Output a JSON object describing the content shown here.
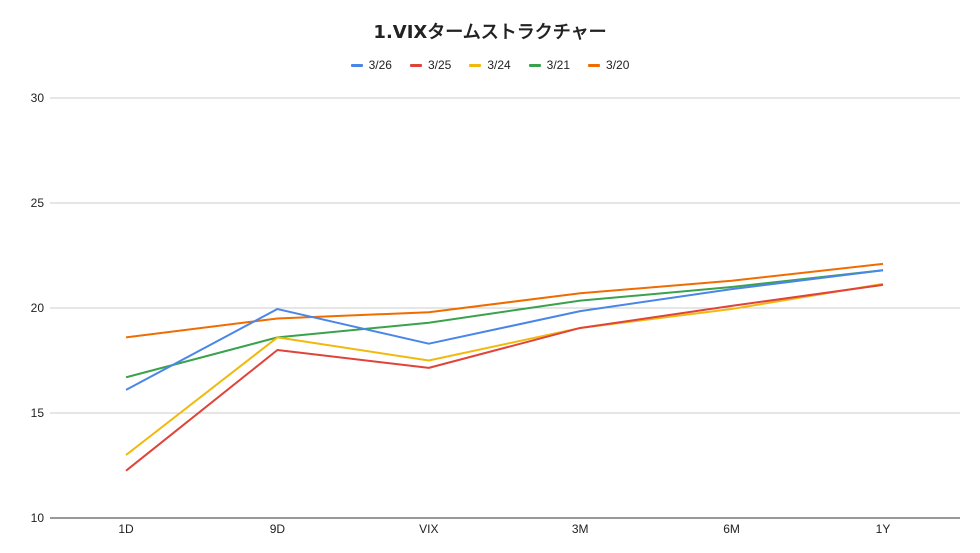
{
  "chart_data": {
    "type": "line",
    "title": "1.VIXタームストラクチャー",
    "xlabel": "",
    "ylabel": "",
    "categories": [
      "1D",
      "9D",
      "VIX",
      "3M",
      "6M",
      "1Y"
    ],
    "ylim": [
      10,
      30
    ],
    "yticks": [
      10,
      15,
      20,
      25,
      30
    ],
    "grid": true,
    "legend_position": "top-center",
    "series": [
      {
        "name": "3/26",
        "color": "#4a86e8",
        "values": [
          16.1,
          19.95,
          18.3,
          19.85,
          20.9,
          21.8
        ]
      },
      {
        "name": "3/25",
        "color": "#e0433a",
        "values": [
          12.25,
          18.0,
          17.15,
          19.05,
          20.1,
          21.1
        ]
      },
      {
        "name": "3/24",
        "color": "#f2b90d",
        "values": [
          13.0,
          18.6,
          17.5,
          19.05,
          19.95,
          21.15
        ]
      },
      {
        "name": "3/21",
        "color": "#3aa24d",
        "values": [
          16.7,
          18.6,
          19.3,
          20.35,
          21.0,
          21.8
        ]
      },
      {
        "name": "3/20",
        "color": "#ef6c00",
        "values": [
          18.6,
          19.5,
          19.8,
          20.7,
          21.3,
          22.1
        ]
      }
    ]
  }
}
